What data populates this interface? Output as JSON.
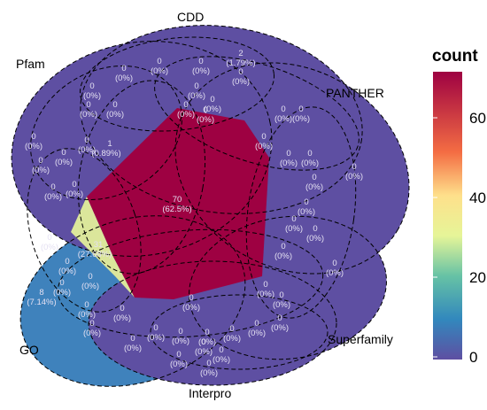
{
  "sets": {
    "cdd": "CDD",
    "pfam": "Pfam",
    "panther": "PANTHER",
    "go": "GO",
    "superfamily": "Superfamily",
    "interpro": "Interpro"
  },
  "legend": {
    "title": "count",
    "ticks": [
      "0",
      "20",
      "40",
      "60"
    ],
    "range": [
      0,
      70
    ],
    "colors": [
      "#5e4fa2",
      "#3288bd",
      "#66c2a5",
      "#abdda4",
      "#e6f598",
      "#fee08b",
      "#fdae61",
      "#f46d43",
      "#d53e4f",
      "#9e0142"
    ]
  },
  "regions": {
    "core": {
      "count": "70",
      "pct": "(62.5%)"
    },
    "go_only": {
      "count": "8",
      "pct": "(7.14%)"
    },
    "cdd_only": {
      "count": "2",
      "pct": "(1.79%)"
    },
    "pfam_pair": {
      "count": "1",
      "pct": "(0.89%)"
    },
    "light": {
      "count": "31",
      "pct": "(27.68%)"
    }
  },
  "zeros": {
    "count": "0",
    "pct": "(0%)"
  },
  "colors": {
    "base": "#5e4fa2",
    "go_only": "#3f82bc",
    "core": "#9e0142",
    "light": "#dbe69b"
  }
}
